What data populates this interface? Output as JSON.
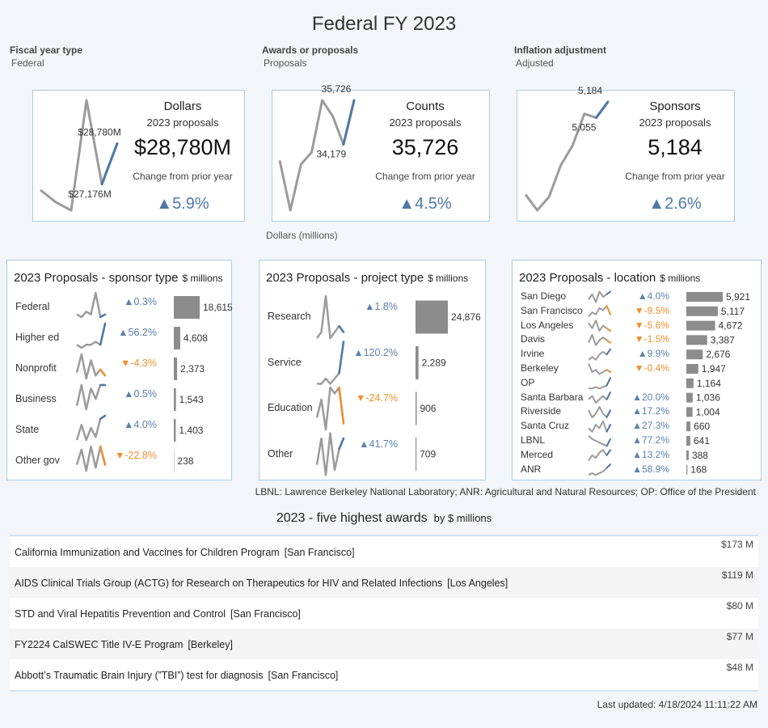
{
  "title": "Federal FY 2023",
  "filters": [
    {
      "label": "Fiscal year type",
      "value": "Federal"
    },
    {
      "label": "Awards or proposals",
      "value": "Proposals"
    },
    {
      "label": "Inflation adjustment",
      "value": "Adjusted"
    }
  ],
  "kpis": [
    {
      "title": "Dollars",
      "subtitle": "2023 proposals",
      "value": "$28,780M",
      "caption": "Change from prior year",
      "change": "▲5.9%",
      "trend": {
        "values": [
          26950,
          26470,
          26150,
          30480,
          27176,
          28780
        ],
        "value_labels": [
          null,
          null,
          null,
          null,
          "$27,176M",
          "$28,780M"
        ]
      }
    },
    {
      "title": "Counts",
      "subtitle": "2023 proposals",
      "value": "35,726",
      "caption": "Change from prior year",
      "change": "▲4.5%",
      "trend": {
        "values": [
          33620,
          31870,
          33480,
          33900,
          35726,
          35160,
          34179,
          35726
        ],
        "value_labels": [
          null,
          null,
          null,
          null,
          null,
          null,
          "34,179",
          "35,726"
        ]
      }
    },
    {
      "title": "Sponsors",
      "subtitle": "2023 proposals",
      "value": "5,184",
      "caption": "Change from prior year",
      "change": "▲2.6%",
      "trend": {
        "values": [
          4429,
          4300,
          4410,
          4668,
          4829,
          5087,
          5055,
          5184
        ],
        "value_labels": [
          null,
          null,
          null,
          null,
          null,
          null,
          "5,055",
          "5,184"
        ]
      }
    }
  ],
  "axis_note": "Dollars (millions)",
  "panels": [
    {
      "title": "2023 Proposals - sponsor type",
      "unit": "$ millions",
      "categories": [
        "Federal",
        "Higher ed",
        "Nonprofit",
        "Business",
        "State",
        "Other gov"
      ],
      "changes": [
        "▲0.3%",
        "▲56.2%",
        "▼-4.3%",
        "▲0.5%",
        "▲4.0%",
        "▼-22.8%"
      ],
      "values": [
        18615,
        4608,
        2373,
        1543,
        1403,
        238
      ],
      "value_labels": [
        "18,615",
        "4,608",
        "2,373",
        "1,543",
        "1,403",
        "238"
      ],
      "trends": [
        [
          2,
          1,
          3,
          2,
          10,
          1,
          2
        ],
        [
          2,
          1,
          2,
          2,
          3,
          2,
          9
        ],
        [
          3,
          9,
          1,
          7,
          2,
          4,
          2
        ],
        [
          3,
          9,
          2,
          8,
          5,
          9,
          9
        ],
        [
          1,
          6,
          1,
          5,
          2,
          8,
          9
        ],
        [
          3,
          8,
          1,
          9,
          2,
          9,
          3
        ]
      ]
    },
    {
      "title": "2023 Proposals - project type",
      "unit": "$ millions",
      "categories": [
        "Research",
        "Service",
        "Education",
        "Other"
      ],
      "changes": [
        "▲1.8%",
        "▲120.2%",
        "▼-24.7%",
        "▲41.7%"
      ],
      "values": [
        24876,
        2289,
        906,
        709
      ],
      "value_labels": [
        "24,876",
        "2,289",
        "906",
        "709"
      ],
      "trends": [
        [
          2,
          3,
          9,
          2,
          3,
          4,
          3
        ],
        [
          1,
          1,
          2,
          1,
          2,
          3,
          9
        ],
        [
          4,
          7,
          2,
          9,
          8,
          9,
          3
        ],
        [
          3,
          8,
          1,
          9,
          2,
          6,
          8
        ]
      ]
    },
    {
      "title": "2023 Proposals - location",
      "unit": "$ millions",
      "categories": [
        "San Diego",
        "San Francisco",
        "Los Angeles",
        "Davis",
        "Irvine",
        "Berkeley",
        "OP",
        "Santa Barbara",
        "Riverside",
        "Santa Cruz",
        "LBNL",
        "Merced",
        "ANR"
      ],
      "changes": [
        "▲4.0%",
        "▼-9.5%",
        "▼-5.6%",
        "▼-1.5%",
        "▲9.9%",
        "▼-0.4%",
        null,
        "▲20.0%",
        "▲17.2%",
        "▲27.3%",
        "▲77.2%",
        "▲13.2%",
        "▲58.9%"
      ],
      "values": [
        5921,
        5117,
        4672,
        3387,
        2676,
        1947,
        1164,
        1036,
        1004,
        660,
        641,
        388,
        168
      ],
      "value_labels": [
        "5,921",
        "5,117",
        "4,672",
        "3,387",
        "2,676",
        "1,947",
        "1,164",
        "1,036",
        "1,004",
        "660",
        "641",
        "388",
        "168"
      ],
      "trends": [
        [
          4,
          6,
          3,
          7,
          5,
          6,
          7
        ],
        [
          3,
          5,
          4,
          7,
          6,
          8,
          4
        ],
        [
          7,
          5,
          8,
          4,
          6,
          5,
          4
        ],
        [
          5,
          8,
          4,
          6,
          7,
          6,
          5
        ],
        [
          3,
          4,
          3,
          5,
          6,
          5,
          7
        ],
        [
          8,
          4,
          5,
          3,
          4,
          5,
          4
        ],
        [
          2,
          2,
          3,
          2,
          3,
          4,
          9
        ],
        [
          4,
          5,
          3,
          4,
          5,
          4,
          6
        ],
        [
          6,
          4,
          5,
          7,
          5,
          4,
          6
        ],
        [
          5,
          4,
          6,
          5,
          7,
          4,
          6
        ],
        [
          8,
          6,
          5,
          4,
          3,
          2,
          6
        ],
        [
          3,
          5,
          4,
          6,
          7,
          5,
          7
        ],
        [
          2,
          3,
          2,
          3,
          4,
          6,
          8
        ]
      ]
    }
  ],
  "footnote": "LBNL: Lawrence Berkeley National Laboratory; ANR: Agricultural and Natural Resources; OP: Office of the President",
  "awards": {
    "title": "2023  - five highest awards",
    "unit": "by $ millions",
    "rows": [
      {
        "name": "California Immunization and Vaccines for Children Program",
        "campus": "[San Francisco]",
        "amount": "$173 M"
      },
      {
        "name": "AIDS Clinical Trials Group (ACTG) for Research on Therapeutics for HIV and Related Infections",
        "campus": "[Los Angeles]",
        "amount": "$119 M"
      },
      {
        "name": "STD and Viral Hepatitis Prevention and Control",
        "campus": "[San Francisco]",
        "amount": "$80 M"
      },
      {
        "name": "FY2224 CalSWEC Title IV-E Program",
        "campus": "[Berkeley]",
        "amount": "$77 M"
      },
      {
        "name": "Abbott’s Traumatic Brain Injury (”TBI”) test for diagnosis",
        "campus": "[San Francisco]",
        "amount": "$48 M"
      }
    ]
  },
  "last_updated": "Last updated: 4/18/2024 11:11:22 AM"
}
